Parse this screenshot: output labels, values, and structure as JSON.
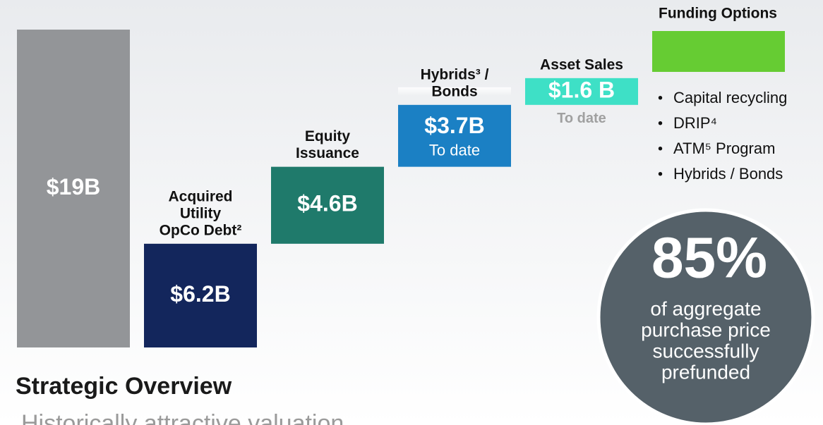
{
  "chart_data": {
    "type": "waterfall",
    "categories": [
      null,
      [
        "Acquired",
        "Utility",
        "OpCo Debt²"
      ],
      [
        "Equity",
        "Issuance"
      ],
      [
        "Hybrids³ /",
        "Bonds"
      ],
      [
        "Asset Sales"
      ]
    ],
    "values": [
      19,
      6.2,
      4.6,
      3.7,
      1.6
    ],
    "value_labels": [
      "$19B",
      "$6.2B",
      "$4.6B",
      "$3.7B",
      "$1.6 B"
    ],
    "notes": [
      null,
      null,
      null,
      "To date",
      "To date"
    ],
    "colors": [
      "#939598",
      "#13265c",
      "#1f7a6b",
      "#1b80c4",
      "#3ee0c6"
    ],
    "ylim": [
      0,
      19
    ],
    "funding": {
      "title": "Funding Options",
      "color": "#66cc33",
      "items": [
        "Capital recycling",
        "DRIP⁴",
        "ATM⁵ Program",
        "Hybrids / Bonds"
      ]
    },
    "callout": {
      "value_label": "85%",
      "lines": [
        "of aggregate",
        "purchase price",
        "successfully",
        "prefunded"
      ]
    },
    "heading": "Strategic Overview",
    "bullet": "Historically attractive valuation"
  }
}
